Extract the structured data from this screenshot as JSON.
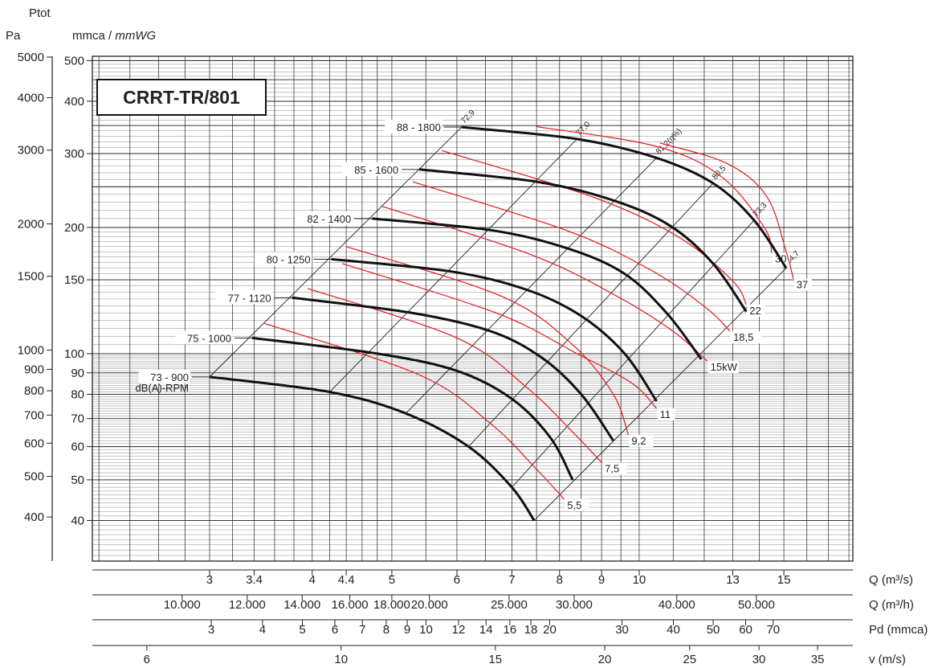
{
  "header": {
    "ptot": "Ptot",
    "pa": "Pa",
    "mmca": "mmca / ",
    "mmwg": "mmWG"
  },
  "title": "CRRT-TR/801",
  "chart_data": {
    "type": "line",
    "title": "CRRT-TR/801",
    "x_scale": "log",
    "y_scale": "log",
    "xlim": [
      2.16,
      18.2
    ],
    "ylim": [
      32,
      512
    ],
    "ylabel_left": "Pa",
    "ylabel_right": "mmca / mmWG",
    "pa_ticks": [
      5000,
      4000,
      3000,
      2000,
      1500,
      1000,
      900,
      800,
      700,
      600,
      500,
      400
    ],
    "mmca_ticks": [
      500,
      400,
      300,
      200,
      150,
      100,
      90,
      80,
      70,
      60,
      50,
      40
    ],
    "pa_labels": [
      "5000",
      "4000",
      "3000",
      "2000",
      "1500",
      "1000",
      "900",
      "800",
      "700",
      "600",
      "500",
      "400"
    ],
    "mmca_labels": [
      "500",
      "400",
      "300",
      "200",
      "150",
      "100",
      "90",
      "80",
      "70",
      "60",
      "50",
      "40"
    ],
    "q_m3s": {
      "label": "Q (m³/s)",
      "ticks": [
        3,
        3.4,
        4,
        4.4,
        5,
        6,
        7,
        8,
        9,
        10,
        13,
        15
      ],
      "labels": [
        "3",
        "3.4",
        "4",
        "4.4",
        "5",
        "6",
        "7",
        "8",
        "9",
        "10",
        "13",
        "15"
      ]
    },
    "q_m3h": {
      "label": "Q (m³/h)",
      "ticks": [
        10000,
        12000,
        14000,
        16000,
        18000,
        20000,
        25000,
        30000,
        40000,
        50000
      ],
      "labels": [
        "10.000",
        "12.000",
        "14.000",
        "16.000",
        "18.000",
        "20.000",
        "25.000",
        "30.000",
        "40.000",
        "50.000"
      ]
    },
    "pd": {
      "label": "Pd (mmca)",
      "ticks": [
        3,
        4,
        5,
        6,
        7,
        8,
        9,
        10,
        12,
        14,
        16,
        18,
        20,
        30,
        40,
        50,
        60,
        70
      ],
      "labels": [
        "3",
        "4",
        "5",
        "6",
        "7",
        "8",
        "9",
        "10",
        "12",
        "14",
        "16",
        "18",
        "20",
        "30",
        "40",
        "50",
        "60",
        "70"
      ]
    },
    "v": {
      "label": "v (m/s)",
      "ticks": [
        6,
        10,
        15,
        20,
        25,
        30,
        35
      ],
      "labels": [
        "6",
        "10",
        "15",
        "20",
        "25",
        "30",
        "35"
      ]
    },
    "fan_curves": [
      {
        "name": "73 - 900",
        "points": [
          [
            3.0,
            88
          ],
          [
            4.2,
            81
          ],
          [
            5.2,
            72
          ],
          [
            6.2,
            60
          ],
          [
            7.0,
            48
          ],
          [
            7.45,
            40
          ]
        ]
      },
      {
        "name": "75 - 1000",
        "points": [
          [
            3.38,
            109
          ],
          [
            4.8,
            100
          ],
          [
            6.0,
            91
          ],
          [
            7.0,
            78
          ],
          [
            7.8,
            63
          ],
          [
            8.3,
            50
          ]
        ]
      },
      {
        "name": "77 - 1120",
        "points": [
          [
            3.78,
            136
          ],
          [
            5.3,
            125
          ],
          [
            6.6,
            113
          ],
          [
            7.6,
            98
          ],
          [
            8.5,
            80
          ],
          [
            9.3,
            62
          ]
        ]
      },
      {
        "name": "80 - 1250",
        "points": [
          [
            4.22,
            168
          ],
          [
            5.9,
            157
          ],
          [
            7.3,
            142
          ],
          [
            8.5,
            123
          ],
          [
            9.6,
            100
          ],
          [
            10.5,
            77
          ]
        ]
      },
      {
        "name": "82 - 1400",
        "points": [
          [
            4.73,
            210
          ],
          [
            6.6,
            197
          ],
          [
            8.2,
            178
          ],
          [
            9.6,
            155
          ],
          [
            10.8,
            125
          ],
          [
            11.9,
            97
          ]
        ]
      },
      {
        "name": "85 - 1600",
        "points": [
          [
            5.4,
            275
          ],
          [
            7.5,
            257
          ],
          [
            9.3,
            232
          ],
          [
            10.9,
            202
          ],
          [
            12.3,
            164
          ],
          [
            13.5,
            126
          ]
        ]
      },
      {
        "name": "88 - 1800",
        "points": [
          [
            6.08,
            347
          ],
          [
            8.4,
            325
          ],
          [
            10.5,
            293
          ],
          [
            12.3,
            255
          ],
          [
            13.8,
            208
          ],
          [
            15.1,
            160
          ]
        ]
      }
    ],
    "efficiency_lines": [
      {
        "label": "72,9",
        "points": [
          [
            3.0,
            88
          ],
          [
            6.08,
            347
          ]
        ]
      },
      {
        "label": "77,0",
        "points": [
          [
            4.2,
            81
          ],
          [
            8.4,
            325
          ]
        ]
      },
      {
        "label": "81,2(η%)",
        "points": [
          [
            5.2,
            72
          ],
          [
            10.5,
            293
          ]
        ]
      },
      {
        "label": "80,5",
        "points": [
          [
            6.2,
            60
          ],
          [
            12.3,
            255
          ]
        ]
      },
      {
        "label": "73,3",
        "points": [
          [
            7.0,
            48
          ],
          [
            13.8,
            208
          ]
        ]
      },
      {
        "label": "64,7",
        "points": [
          [
            7.45,
            40
          ],
          [
            15.1,
            160
          ]
        ]
      }
    ],
    "power_lines": [
      {
        "label": "5,5",
        "points": [
          [
            3.5,
            118
          ],
          [
            5.4,
            89
          ],
          [
            6.6,
            68
          ],
          [
            7.5,
            53
          ],
          [
            8.1,
            45
          ]
        ]
      },
      {
        "label": "7,5",
        "points": [
          [
            3.95,
            143
          ],
          [
            6.0,
            109
          ],
          [
            7.3,
            83
          ],
          [
            8.3,
            65
          ],
          [
            9.0,
            55
          ]
        ]
      },
      {
        "label": "9,2",
        "points": [
          [
            4.4,
            180
          ],
          [
            6.8,
            137
          ],
          [
            8.3,
            105
          ],
          [
            9.3,
            80
          ],
          [
            9.7,
            64
          ]
        ]
      },
      {
        "label": "11",
        "points": [
          [
            4.35,
            164
          ],
          [
            6.7,
            125
          ],
          [
            8.4,
            100
          ],
          [
            9.8,
            85
          ],
          [
            10.5,
            74
          ]
        ]
      },
      {
        "label": "15kW",
        "points": [
          [
            4.85,
            225
          ],
          [
            7.4,
            172
          ],
          [
            9.4,
            137
          ],
          [
            11.0,
            113
          ],
          [
            12.1,
            96
          ]
        ]
      },
      {
        "label": "18,5",
        "points": [
          [
            5.3,
            257
          ],
          [
            8.2,
            196
          ],
          [
            10.4,
            157
          ],
          [
            12.1,
            128
          ],
          [
            12.9,
            113
          ]
        ]
      },
      {
        "label": "22",
        "points": [
          [
            5.75,
            305
          ],
          [
            8.8,
            236
          ],
          [
            11.2,
            189
          ],
          [
            13.0,
            149
          ],
          [
            13.5,
            131
          ]
        ]
      },
      {
        "label": "30",
        "points": [
          [
            7.5,
            348
          ],
          [
            10.5,
            312
          ],
          [
            12.6,
            264
          ],
          [
            14.2,
            200
          ],
          [
            14.5,
            174
          ]
        ]
      },
      {
        "label": "37",
        "points": [
          [
            10.6,
            318
          ],
          [
            12.8,
            284
          ],
          [
            14.3,
            237
          ],
          [
            15.1,
            175
          ],
          [
            15.4,
            151
          ]
        ]
      }
    ],
    "annotations": [
      "dB(A)-RPM"
    ],
    "grid": true
  }
}
